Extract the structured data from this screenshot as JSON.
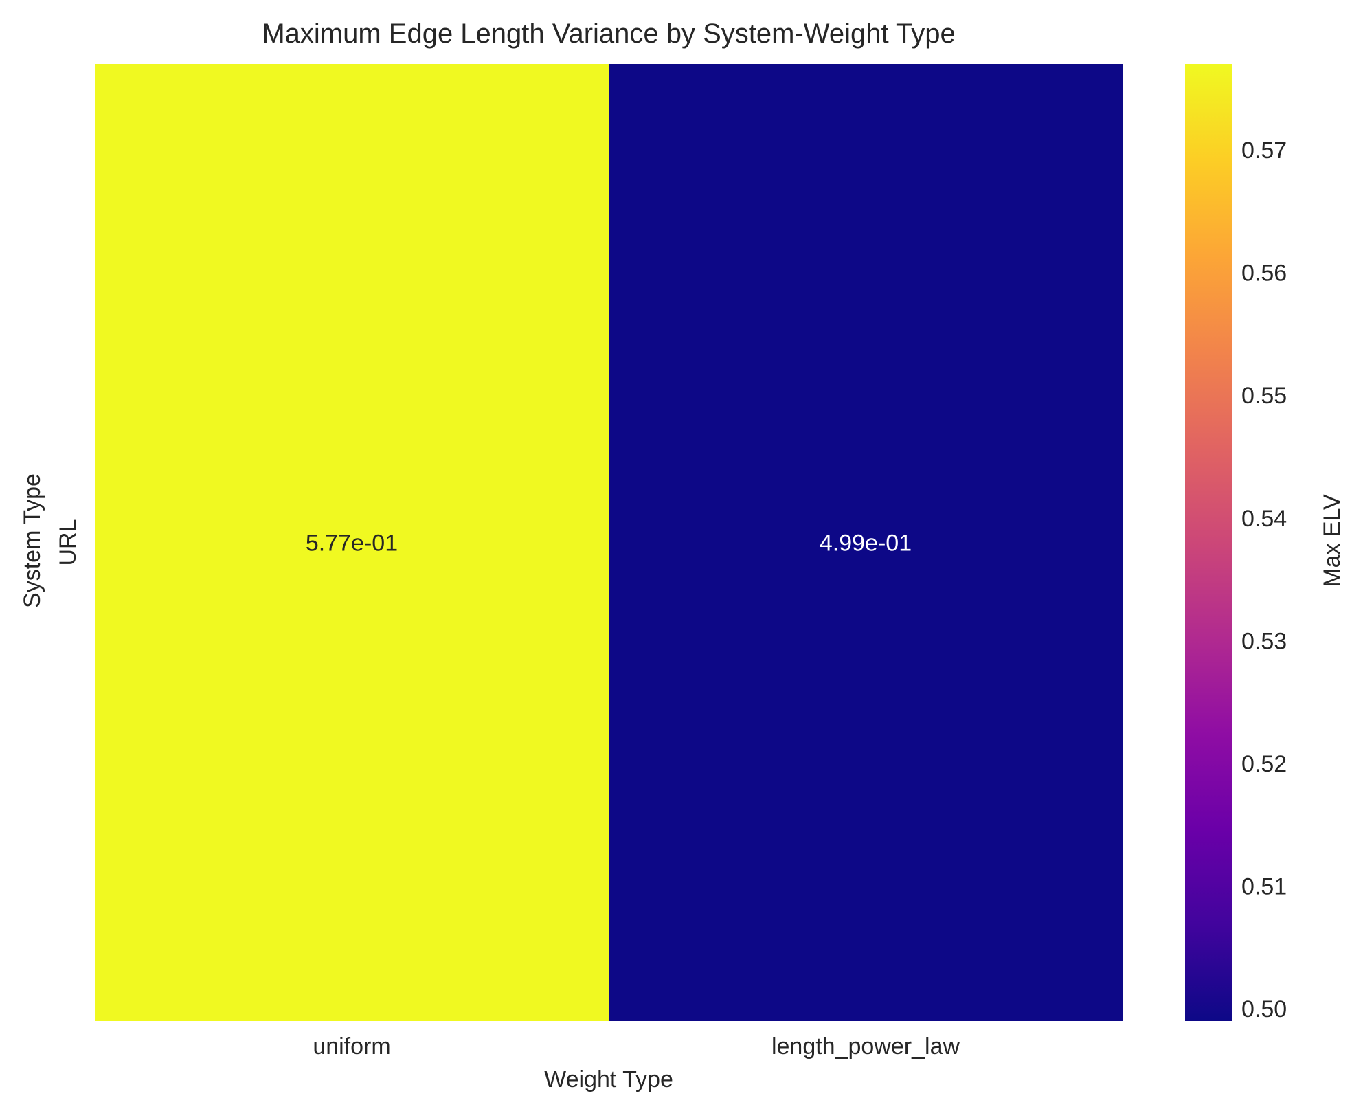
{
  "chart_data": {
    "type": "heatmap",
    "title": "Maximum Edge Length Variance by System-Weight Type",
    "xlabel": "Weight Type",
    "ylabel": "System Type",
    "x_categories": [
      "uniform",
      "length_power_law"
    ],
    "y_categories": [
      "URL"
    ],
    "values": [
      [
        0.577,
        0.499
      ]
    ],
    "cell_labels": [
      [
        "5.77e-01",
        "4.99e-01"
      ]
    ],
    "colormap": "plasma",
    "colorbar": {
      "label": "Max ELV",
      "vmin": 0.499,
      "vmax": 0.577,
      "ticks": [
        0.5,
        0.51,
        0.52,
        0.53,
        0.54,
        0.55,
        0.56,
        0.57
      ],
      "tick_labels": [
        "0.50",
        "0.51",
        "0.52",
        "0.53",
        "0.54",
        "0.55",
        "0.56",
        "0.57"
      ]
    },
    "grid": false
  }
}
